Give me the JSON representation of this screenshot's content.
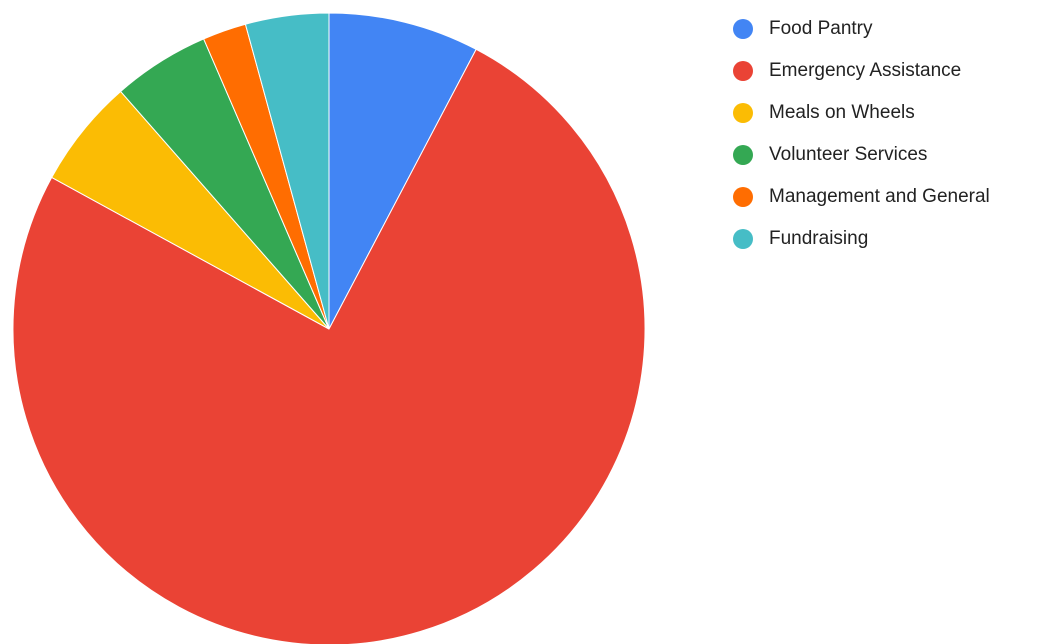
{
  "chart_data": {
    "type": "pie",
    "title": "",
    "start_angle_deg": 0,
    "direction": "clockwise",
    "legend_position": "right",
    "slices": [
      {
        "label": "Food Pantry",
        "value": 7.6,
        "color": "#4285F4"
      },
      {
        "label": "Emergency Assistance",
        "value": 74.2,
        "color": "#EA4335"
      },
      {
        "label": "Meals on Wheels",
        "value": 5.5,
        "color": "#FBBC04"
      },
      {
        "label": "Volunteer Services",
        "value": 4.9,
        "color": "#34A853"
      },
      {
        "label": "Management and General",
        "value": 2.2,
        "color": "#FF6D01"
      },
      {
        "label": "Fundraising",
        "value": 4.2,
        "color": "#46BDC6"
      }
    ]
  }
}
